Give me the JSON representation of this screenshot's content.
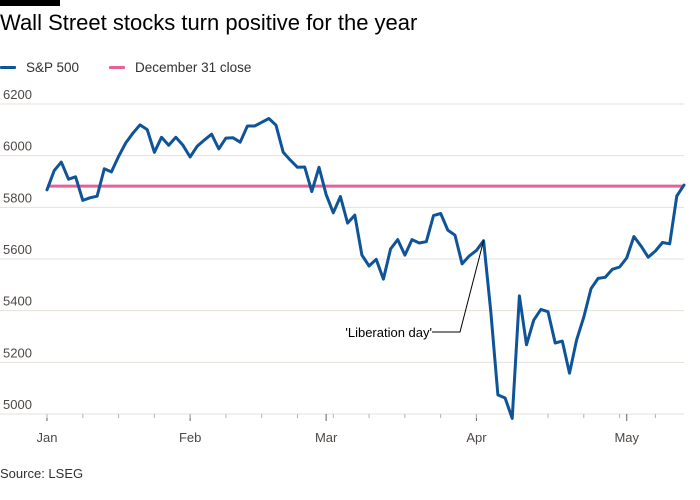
{
  "title": "Wall Street stocks turn positive for the year",
  "source": "Source: LSEG",
  "colors": {
    "sp500": "#0f5499",
    "dec31": "#e6619a",
    "grid": "#e6e0da",
    "axis": "#66605c",
    "text": "#33302e"
  },
  "chart_data": {
    "type": "line",
    "title": "Wall Street stocks turn positive for the year",
    "xlabel": "",
    "ylabel": "",
    "ylim": [
      5000,
      6200
    ],
    "yticks": [
      5000,
      5200,
      5400,
      5600,
      5800,
      6000,
      6200
    ],
    "xticks": [
      {
        "label": "Jan",
        "index": 0
      },
      {
        "label": "Feb",
        "index": 20
      },
      {
        "label": "Mar",
        "index": 39
      },
      {
        "label": "Apr",
        "index": 60
      },
      {
        "label": "May",
        "index": 81
      }
    ],
    "legend_position": "top-left",
    "grid": true,
    "series": [
      {
        "name": "S&P 500",
        "color": "#0f5499",
        "values": [
          5868,
          5942,
          5975,
          5909,
          5918,
          5827,
          5837,
          5843,
          5949,
          5937,
          5997,
          6049,
          6087,
          6119,
          6101,
          6013,
          6071,
          6040,
          6071,
          6040,
          5995,
          6037,
          6061,
          6083,
          6026,
          6068,
          6069,
          6052,
          6115,
          6115,
          6129,
          6144,
          6118,
          6013,
          5983,
          5955,
          5956,
          5861,
          5955,
          5850,
          5779,
          5842,
          5739,
          5770,
          5615,
          5573,
          5599,
          5522,
          5639,
          5675,
          5615,
          5675,
          5662,
          5667,
          5768,
          5776,
          5712,
          5692,
          5581,
          5612,
          5633,
          5671,
          5396,
          5074,
          5062,
          4983,
          5457,
          5268,
          5363,
          5405,
          5396,
          5275,
          5282,
          5158,
          5287,
          5375,
          5485,
          5525,
          5529,
          5560,
          5569,
          5604,
          5687,
          5650,
          5607,
          5631,
          5664,
          5659,
          5844,
          5886
        ]
      },
      {
        "name": "December 31 close",
        "color": "#e6619a",
        "values": [
          5882,
          5882
        ]
      }
    ],
    "annotations": [
      {
        "text": "'Liberation day'",
        "index": 61,
        "value": 5671
      }
    ]
  }
}
